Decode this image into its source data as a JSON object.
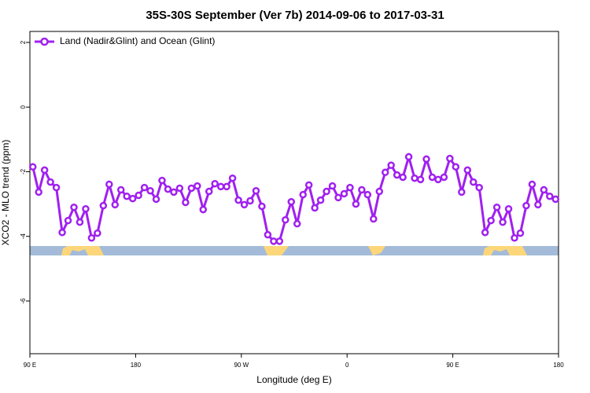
{
  "chart_data": {
    "type": "line",
    "title": "35S-30S September (Ver 7b)   2014-09-06 to 2017-03-31",
    "x_label": "Longitude (deg E)",
    "y_label": "XCO2 - MLO trend (ppm)",
    "xlim": [
      90,
      540
    ],
    "ylim": [
      -7.63,
      2.34
    ],
    "xticks": [
      {
        "value": 90,
        "label": "90 E"
      },
      180,
      {
        "value": 270,
        "label": "90 W"
      },
      {
        "value": 360,
        "label": "0"
      },
      {
        "value": 450,
        "label": "90 E"
      },
      {
        "value": 540,
        "label": "180"
      }
    ],
    "yticks": [
      2,
      0,
      -2,
      -4,
      -6
    ],
    "legend": "top-left",
    "x": [
      92.5,
      97.5,
      102.5,
      107.5,
      112.5,
      117.5,
      122.5,
      127.5,
      132.5,
      137.5,
      142.5,
      147.5,
      152.5,
      157.5,
      162.5,
      167.5,
      172.5,
      177.5,
      182.5,
      187.5,
      192.5,
      197.5,
      202.5,
      207.5,
      212.5,
      217.5,
      222.5,
      227.5,
      232.5,
      237.5,
      242.5,
      247.5,
      252.5,
      257.5,
      262.5,
      267.5,
      272.5,
      277.5,
      282.5,
      287.5,
      292.5,
      297.5,
      302.5,
      307.5,
      312.5,
      317.5,
      322.5,
      327.5,
      332.5,
      337.5,
      342.5,
      347.5,
      352.5,
      357.5,
      362.5,
      367.5,
      372.5,
      377.5,
      382.5,
      387.5,
      392.5,
      397.5,
      402.5,
      407.5,
      412.5,
      417.5,
      422.5,
      427.5,
      432.5,
      437.5,
      442.5,
      447.5,
      452.5,
      457.5,
      462.5,
      467.5,
      472.5,
      477.5,
      482.5,
      487.5,
      492.5,
      497.5,
      502.5,
      507.5,
      512.5,
      517.5,
      522.5,
      527.5,
      532.5,
      537.5
    ],
    "series": [
      {
        "name": "Land (Nadir&Glint) and Ocean (Glint)",
        "color": "#a020f0",
        "values": [
          -1.85,
          -2.63,
          -1.95,
          -2.32,
          -2.49,
          -3.88,
          -3.51,
          -3.1,
          -3.56,
          -3.15,
          -4.05,
          -3.9,
          -3.05,
          -2.39,
          -3.02,
          -2.56,
          -2.76,
          -2.83,
          -2.73,
          -2.49,
          -2.59,
          -2.85,
          -2.27,
          -2.54,
          -2.63,
          -2.51,
          -2.95,
          -2.51,
          -2.44,
          -3.17,
          -2.61,
          -2.37,
          -2.46,
          -2.46,
          -2.2,
          -2.88,
          -3.02,
          -2.9,
          -2.59,
          -3.07,
          -3.95,
          -4.15,
          -4.15,
          -3.49,
          -2.93,
          -3.61,
          -2.71,
          -2.41,
          -3.12,
          -2.88,
          -2.61,
          -2.44,
          -2.8,
          -2.68,
          -2.49,
          -3.0,
          -2.56,
          -2.71,
          -3.46,
          -2.61,
          -2.02,
          -1.8,
          -2.1,
          -2.17,
          -1.54,
          -2.2,
          -2.24,
          -1.61,
          -2.17,
          -2.24,
          -2.17,
          -1.59,
          -1.85,
          -2.63,
          -1.95,
          -2.32,
          -2.49,
          -3.88,
          -3.51,
          -3.1,
          -3.56,
          -3.15,
          -4.05,
          -3.9,
          -3.05,
          -2.39,
          -3.02,
          -2.56,
          -2.76,
          -2.85
        ]
      }
    ]
  }
}
